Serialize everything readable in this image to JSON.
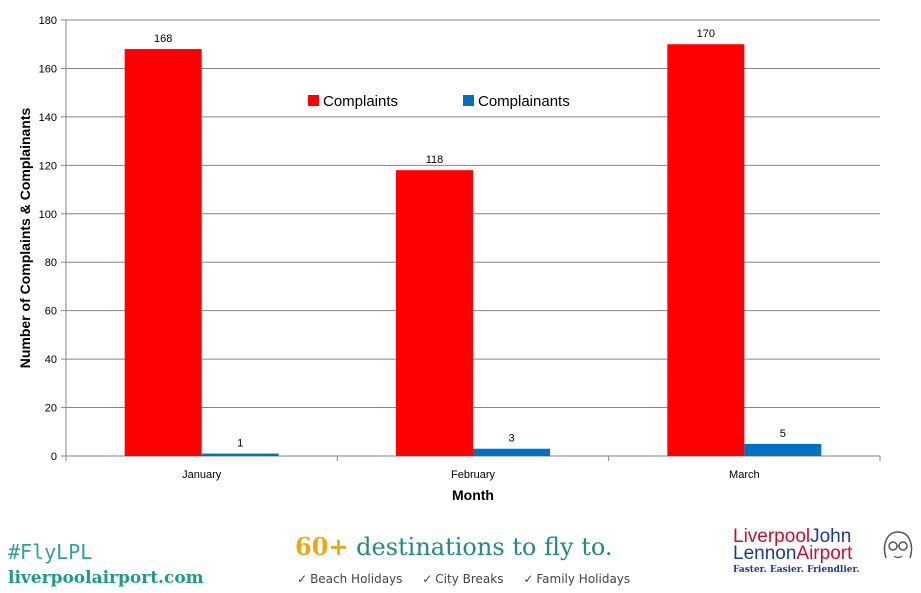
{
  "chart_data": {
    "type": "bar",
    "categories": [
      "January",
      "February",
      "March"
    ],
    "series": [
      {
        "name": "Complaints",
        "values": [
          168,
          118,
          170
        ],
        "color": "#ff0000"
      },
      {
        "name": "Complainants",
        "values": [
          1,
          3,
          5
        ],
        "color": "#0070c0"
      }
    ],
    "xlabel": "Month",
    "ylabel": "Number of Complaints & Complainants",
    "ylim": [
      0,
      180
    ],
    "yticks": [
      0,
      20,
      40,
      60,
      80,
      100,
      120,
      140,
      160,
      180
    ],
    "grid": true,
    "legend_position": "top-center"
  },
  "footer": {
    "hashtag": "#FlyLPL",
    "website": "liverpoolairport.com",
    "promo_number": "60+",
    "promo_text": " destinations to fly to.",
    "features": [
      "Beach Holidays",
      "City Breaks",
      "Family Holidays"
    ],
    "check_icon": "checkmark-icon",
    "logo": {
      "line1a": "Liverpool",
      "line1b": "John",
      "line2a": "Lennon",
      "line2b": "Airport",
      "tagline": "Faster. Easier. Friendlier.",
      "icon": "john-lennon-portrait-icon"
    }
  }
}
